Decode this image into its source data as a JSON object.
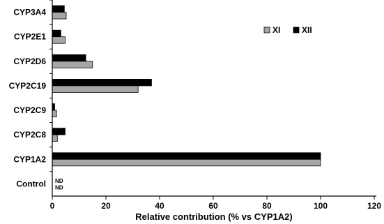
{
  "chart_data": {
    "type": "bar",
    "orientation": "horizontal",
    "title": "",
    "xlabel": "Relative contribution (% vs CYP1A2)",
    "ylabel": "",
    "xlim": [
      0,
      120
    ],
    "xticks": [
      "0",
      "20",
      "40",
      "60",
      "80",
      "100",
      "120"
    ],
    "categories": [
      "CYP3A4",
      "CYP2E1",
      "CYP2D6",
      "CYP2C19",
      "CYP2C9",
      "CYP2C8",
      "CYP1A2",
      "Control"
    ],
    "series": [
      {
        "name": "XI",
        "color": "#a6a6a6",
        "values": [
          5.2,
          4.8,
          15,
          32,
          1.6,
          1.9,
          100,
          0
        ],
        "labels": [
          "",
          "",
          "",
          "",
          "",
          "",
          "",
          "ND"
        ]
      },
      {
        "name": "XII",
        "color": "#000000",
        "values": [
          4.5,
          3.2,
          12.5,
          37,
          0.9,
          4.8,
          100,
          0
        ],
        "labels": [
          "",
          "",
          "",
          "",
          "",
          "",
          "",
          "ND"
        ]
      }
    ],
    "legend": {
      "position": "top-right",
      "entries": [
        "XI",
        "XII"
      ]
    },
    "grid": false
  }
}
